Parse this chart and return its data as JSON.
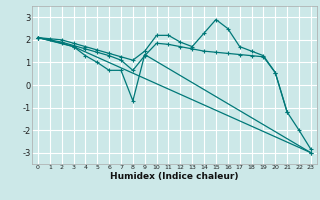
{
  "title": "",
  "xlabel": "Humidex (Indice chaleur)",
  "xlim": [
    -0.5,
    23.5
  ],
  "ylim": [
    -3.5,
    3.5
  ],
  "xticks": [
    0,
    1,
    2,
    3,
    4,
    5,
    6,
    7,
    8,
    9,
    10,
    11,
    12,
    13,
    14,
    15,
    16,
    17,
    18,
    19,
    20,
    21,
    22,
    23
  ],
  "yticks": [
    -3,
    -2,
    -1,
    0,
    1,
    2,
    3
  ],
  "background_color": "#cce8e8",
  "grid_color": "#ffffff",
  "line_color": "#007878",
  "lines": [
    {
      "x": [
        0,
        1,
        2,
        3,
        4,
        5,
        6,
        7,
        8,
        9,
        10,
        11,
        12,
        13,
        14,
        15,
        16,
        17,
        18,
        19,
        20,
        21,
        22,
        23
      ],
      "y": [
        2.1,
        2.05,
        2.0,
        1.85,
        1.7,
        1.55,
        1.4,
        1.25,
        1.1,
        1.5,
        2.2,
        2.2,
        1.9,
        1.7,
        2.3,
        2.9,
        2.5,
        1.7,
        1.5,
        1.3,
        0.55,
        -1.2,
        -2.0,
        -2.85
      ]
    },
    {
      "x": [
        0,
        3,
        23
      ],
      "y": [
        2.1,
        1.7,
        -3.0
      ]
    },
    {
      "x": [
        0,
        2,
        3,
        4,
        5,
        6,
        7,
        8,
        9,
        10,
        11,
        12,
        13,
        14,
        15,
        16,
        17,
        18,
        19,
        20,
        21
      ],
      "y": [
        2.1,
        1.9,
        1.75,
        1.6,
        1.45,
        1.3,
        1.1,
        0.65,
        1.3,
        1.85,
        1.8,
        1.7,
        1.6,
        1.5,
        1.45,
        1.4,
        1.35,
        1.3,
        1.25,
        0.55,
        -1.2
      ]
    },
    {
      "x": [
        0,
        2,
        3,
        4,
        5,
        6,
        7,
        8,
        9,
        23
      ],
      "y": [
        2.1,
        1.85,
        1.7,
        1.3,
        1.0,
        0.65,
        0.65,
        -0.7,
        1.35,
        -3.0
      ]
    }
  ]
}
